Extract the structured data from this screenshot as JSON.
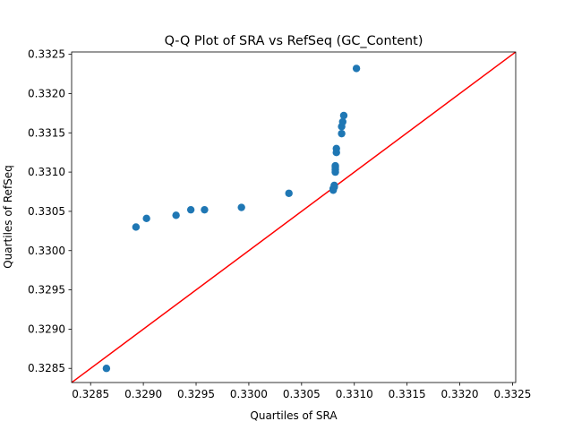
{
  "chart_data": {
    "type": "scatter",
    "title": "Q-Q Plot of SRA vs RefSeq (GC_Content)",
    "xlabel": "Quartiles of SRA",
    "ylabel": "Quartiles of RefSeq",
    "xlim": [
      0.32832,
      0.33253
    ],
    "ylim": [
      0.32832,
      0.33253
    ],
    "xticks": [
      "0.3285",
      "0.3290",
      "0.3295",
      "0.3300",
      "0.3305",
      "0.3310",
      "0.3315",
      "0.3320",
      "0.3325"
    ],
    "yticks": [
      "0.3285",
      "0.3290",
      "0.3295",
      "0.3300",
      "0.3305",
      "0.3310",
      "0.3315",
      "0.3320",
      "0.3325"
    ],
    "grid": false,
    "points": [
      {
        "x": 0.32865,
        "y": 0.3285
      },
      {
        "x": 0.32893,
        "y": 0.3303
      },
      {
        "x": 0.32903,
        "y": 0.33041
      },
      {
        "x": 0.32931,
        "y": 0.33045
      },
      {
        "x": 0.32945,
        "y": 0.33052
      },
      {
        "x": 0.32958,
        "y": 0.33052
      },
      {
        "x": 0.32993,
        "y": 0.33055
      },
      {
        "x": 0.33038,
        "y": 0.33073
      },
      {
        "x": 0.3308,
        "y": 0.33077
      },
      {
        "x": 0.3308,
        "y": 0.33079
      },
      {
        "x": 0.33081,
        "y": 0.33081
      },
      {
        "x": 0.33081,
        "y": 0.33083
      },
      {
        "x": 0.33082,
        "y": 0.331
      },
      {
        "x": 0.33082,
        "y": 0.33103
      },
      {
        "x": 0.33082,
        "y": 0.33106
      },
      {
        "x": 0.33082,
        "y": 0.33108
      },
      {
        "x": 0.33083,
        "y": 0.33125
      },
      {
        "x": 0.33083,
        "y": 0.3313
      },
      {
        "x": 0.33088,
        "y": 0.33149
      },
      {
        "x": 0.33088,
        "y": 0.33158
      },
      {
        "x": 0.33089,
        "y": 0.33164
      },
      {
        "x": 0.3309,
        "y": 0.33172
      },
      {
        "x": 0.33102,
        "y": 0.33232
      }
    ],
    "reference_line": {
      "type": "y=x",
      "color": "#ff0000"
    },
    "colors": {
      "points": "#1f77b4",
      "line": "#ff0000",
      "axes": "#000000",
      "background": "#ffffff"
    }
  }
}
